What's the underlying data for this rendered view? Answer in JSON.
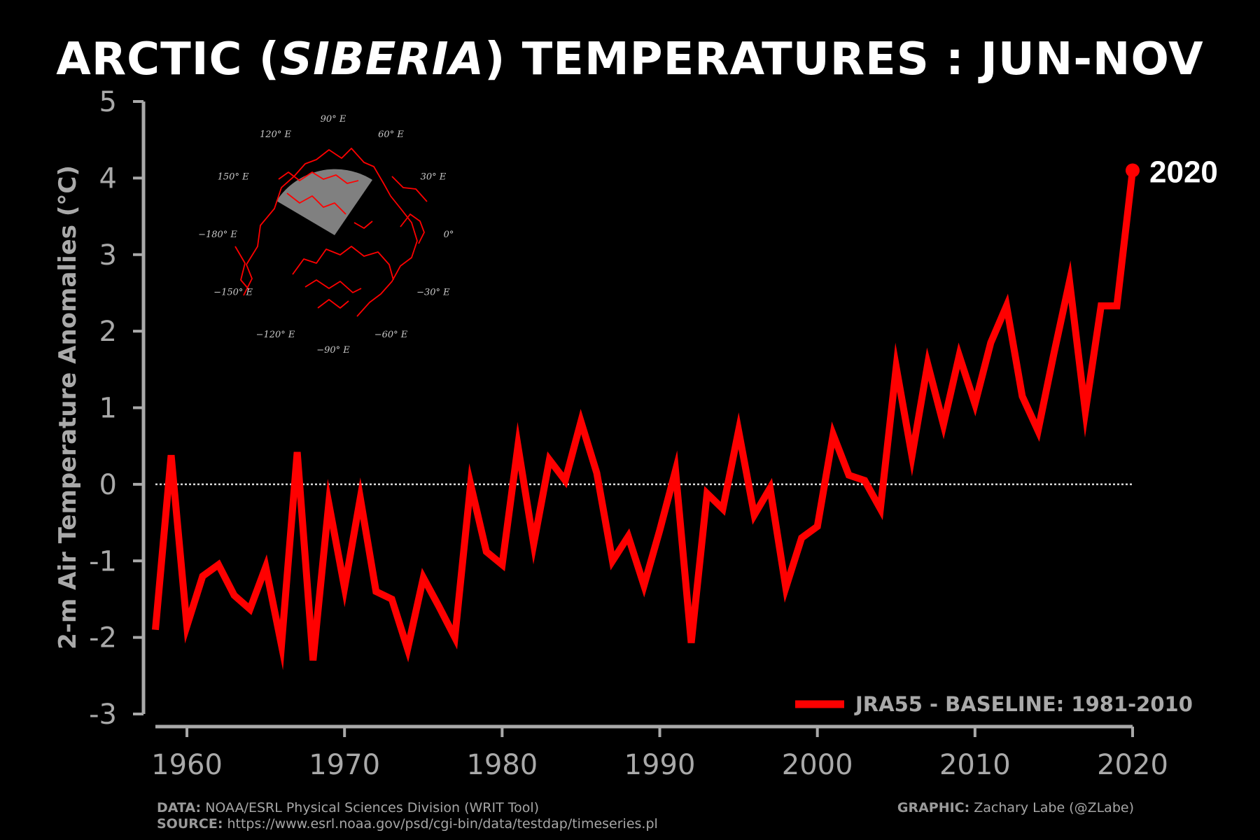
{
  "title": {
    "prefix": "ARCTIC (",
    "emphasis": "SIBERIA",
    "suffix": ") TEMPERATURES : JUN-NOV"
  },
  "chart_data": {
    "type": "line",
    "ylabel": "2-m Air Temperature Anomalies (°C)",
    "xlabel": "",
    "xlim": [
      1958,
      2020
    ],
    "ylim": [
      -3,
      5
    ],
    "xticks": [
      1960,
      1970,
      1980,
      1990,
      2000,
      2010,
      2020
    ],
    "yticks": [
      -3,
      -2,
      -1,
      0,
      1,
      2,
      3,
      4,
      5
    ],
    "ytick_labels": [
      "-3",
      "-2",
      "-1",
      "0",
      "1",
      "2",
      "3",
      "4",
      "5"
    ],
    "baseline": 0,
    "grid": false,
    "legend_position": "bottom-right",
    "series": [
      {
        "name": "JRA55 - BASELINE: 1981-2010",
        "color": "#ff0000",
        "x": [
          1958,
          1959,
          1960,
          1961,
          1962,
          1963,
          1964,
          1965,
          1966,
          1967,
          1968,
          1969,
          1970,
          1971,
          1972,
          1973,
          1974,
          1975,
          1976,
          1977,
          1978,
          1979,
          1980,
          1981,
          1982,
          1983,
          1984,
          1985,
          1986,
          1987,
          1988,
          1989,
          1990,
          1991,
          1992,
          1993,
          1994,
          1995,
          1996,
          1997,
          1998,
          1999,
          2000,
          2001,
          2002,
          2003,
          2004,
          2005,
          2006,
          2007,
          2008,
          2009,
          2010,
          2011,
          2012,
          2013,
          2014,
          2015,
          2016,
          2017,
          2018,
          2019,
          2020
        ],
        "values": [
          -1.9,
          0.38,
          -1.85,
          -1.2,
          -1.05,
          -1.45,
          -1.63,
          -1.08,
          -2.1,
          0.42,
          -2.3,
          -0.25,
          -1.35,
          -0.18,
          -1.4,
          -1.5,
          -2.15,
          -1.22,
          -1.6,
          -2.0,
          0.0,
          -0.88,
          -1.05,
          0.5,
          -0.78,
          0.32,
          0.05,
          0.82,
          0.15,
          -1.0,
          -0.68,
          -1.32,
          -0.6,
          0.18,
          -2.07,
          -0.12,
          -0.32,
          0.7,
          -0.4,
          -0.05,
          -1.35,
          -0.7,
          -0.55,
          0.65,
          0.12,
          0.05,
          -0.32,
          1.53,
          0.37,
          1.57,
          0.78,
          1.68,
          1.05,
          1.85,
          2.33,
          1.15,
          0.7,
          1.7,
          2.65,
          0.95,
          2.33,
          2.33,
          4.1
        ]
      }
    ],
    "annotation": {
      "text": "2020",
      "x": 2020,
      "y": 4.1
    }
  },
  "inset_map": {
    "longitude_labels": [
      "90° E",
      "60° E",
      "30° E",
      "0°",
      "−30° E",
      "−60° E",
      "−90° E",
      "−120° E",
      "−150° E",
      "−180° E",
      "150° E",
      "120° E"
    ],
    "highlight_color": "#808080",
    "coast_color": "#ff0000"
  },
  "footer": {
    "data_label": "DATA:",
    "data_text": "NOAA/ESRL Physical Sciences Division (WRIT Tool)",
    "source_label": "SOURCE:",
    "source_text": "https://www.esrl.noaa.gov/psd/cgi-bin/data/testdap/timeseries.pl",
    "graphic_label": "GRAPHIC:",
    "graphic_text": "Zachary Labe (@ZLabe)"
  },
  "colors": {
    "background": "#000000",
    "axis": "#a9a9a9",
    "line": "#ff0000",
    "text": "#ffffff"
  }
}
